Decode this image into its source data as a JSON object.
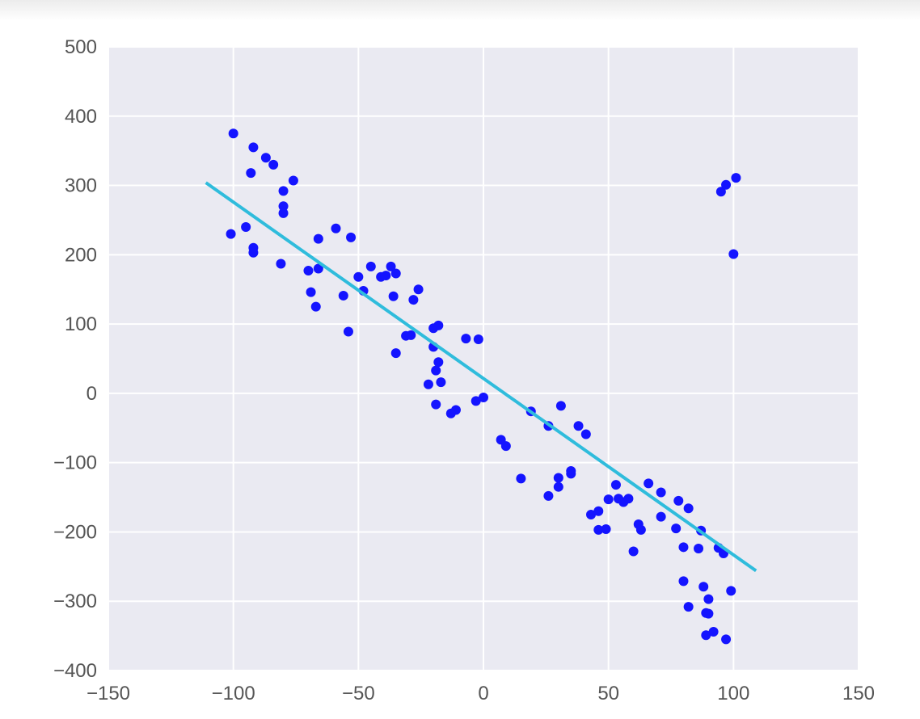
{
  "chart_data": {
    "type": "scatter",
    "title": "",
    "xlabel": "",
    "ylabel": "",
    "xlim": [
      -150,
      150
    ],
    "ylim": [
      -400,
      500
    ],
    "xticks": [
      -150,
      -100,
      -50,
      0,
      50,
      100,
      150
    ],
    "yticks": [
      -400,
      -300,
      -200,
      -100,
      0,
      100,
      200,
      300,
      400,
      500
    ],
    "xtick_labels": [
      "−150",
      "−100",
      "−50",
      "0",
      "50",
      "100",
      "150"
    ],
    "ytick_labels": [
      "−400",
      "−300",
      "−200",
      "−100",
      "0",
      "100",
      "200",
      "300",
      "400",
      "500"
    ],
    "grid": true,
    "points_color": "#1414ff",
    "line_color": "#2fbcdc",
    "background": "#eaeaf2",
    "points": [
      [
        -100,
        375
      ],
      [
        -92,
        355
      ],
      [
        -87,
        340
      ],
      [
        -84,
        330
      ],
      [
        -93,
        318
      ],
      [
        -76,
        307
      ],
      [
        -80,
        292
      ],
      [
        -80,
        270
      ],
      [
        -80,
        260
      ],
      [
        -101,
        230
      ],
      [
        -95,
        240
      ],
      [
        -92,
        210
      ],
      [
        -92,
        203
      ],
      [
        -81,
        187
      ],
      [
        -66,
        223
      ],
      [
        -59,
        238
      ],
      [
        -53,
        225
      ],
      [
        -70,
        177
      ],
      [
        -66,
        180
      ],
      [
        -69,
        146
      ],
      [
        -67,
        125
      ],
      [
        -56,
        141
      ],
      [
        -48,
        148
      ],
      [
        -50,
        168
      ],
      [
        -45,
        183
      ],
      [
        -41,
        168
      ],
      [
        -39,
        170
      ],
      [
        -37,
        183
      ],
      [
        -35,
        173
      ],
      [
        -36,
        140
      ],
      [
        -26,
        150
      ],
      [
        -28,
        135
      ],
      [
        -54,
        89
      ],
      [
        -31,
        83
      ],
      [
        -29,
        84
      ],
      [
        -35,
        58
      ],
      [
        -18,
        98
      ],
      [
        -20,
        94
      ],
      [
        -20,
        67
      ],
      [
        -18,
        45
      ],
      [
        -19,
        33
      ],
      [
        -17,
        16
      ],
      [
        -22,
        13
      ],
      [
        -7,
        79
      ],
      [
        -2,
        78
      ],
      [
        -19,
        -16
      ],
      [
        -11,
        -24
      ],
      [
        -13,
        -29
      ],
      [
        0,
        -6
      ],
      [
        -3,
        -11
      ],
      [
        7,
        -67
      ],
      [
        9,
        -76
      ],
      [
        15,
        -123
      ],
      [
        19,
        -26
      ],
      [
        31,
        -18
      ],
      [
        26,
        -47
      ],
      [
        38,
        -47
      ],
      [
        41,
        -59
      ],
      [
        30,
        -122
      ],
      [
        30,
        -135
      ],
      [
        26,
        -148
      ],
      [
        35,
        -112
      ],
      [
        35,
        -116
      ],
      [
        43,
        -175
      ],
      [
        46,
        -170
      ],
      [
        46,
        -197
      ],
      [
        49,
        -196
      ],
      [
        50,
        -153
      ],
      [
        53,
        -132
      ],
      [
        54,
        -152
      ],
      [
        56,
        -157
      ],
      [
        58,
        -152
      ],
      [
        60,
        -228
      ],
      [
        62,
        -189
      ],
      [
        63,
        -197
      ],
      [
        66,
        -130
      ],
      [
        71,
        -143
      ],
      [
        71,
        -178
      ],
      [
        77,
        -195
      ],
      [
        78,
        -155
      ],
      [
        80,
        -222
      ],
      [
        82,
        -166
      ],
      [
        86,
        -224
      ],
      [
        87,
        -198
      ],
      [
        80,
        -271
      ],
      [
        88,
        -279
      ],
      [
        82,
        -308
      ],
      [
        90,
        -297
      ],
      [
        89,
        -317
      ],
      [
        90,
        -318
      ],
      [
        89,
        -349
      ],
      [
        92,
        -344
      ],
      [
        94,
        -223
      ],
      [
        96,
        -231
      ],
      [
        97,
        -355
      ],
      [
        99,
        -285
      ],
      [
        95,
        291
      ],
      [
        97,
        301
      ],
      [
        101,
        311
      ],
      [
        100,
        201
      ]
    ],
    "regression_line": {
      "x": [
        -111,
        109
      ],
      "y": [
        304,
        -256
      ]
    }
  }
}
